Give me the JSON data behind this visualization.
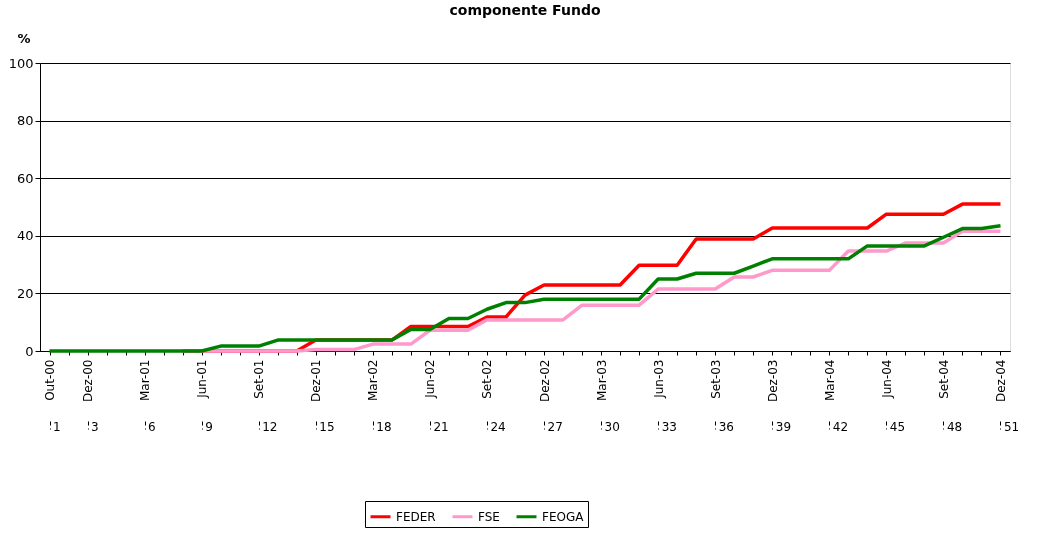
{
  "chart_data": {
    "type": "line",
    "title": "componente Fundo",
    "ylabel": "%",
    "categories": [
      "Out-00",
      null,
      "Dez-00",
      null,
      null,
      "Mar-01",
      null,
      null,
      "Jun-01",
      null,
      null,
      "Set-01",
      null,
      null,
      "Dez-01",
      null,
      null,
      "Mar-02",
      null,
      null,
      "Jun-02",
      null,
      null,
      "Set-02",
      null,
      null,
      "Dez-02",
      null,
      null,
      "Mar-03",
      null,
      null,
      "Jun-03",
      null,
      null,
      "Set-03",
      null,
      null,
      "Dez-03",
      null,
      null,
      "Mar-04",
      null,
      null,
      "Jun-04",
      null,
      null,
      "Set-04",
      null,
      null,
      "Dez-04"
    ],
    "series": [
      {
        "name": "FEDER",
        "color": "#ff0000",
        "values": [
          null,
          null,
          null,
          null,
          null,
          null,
          null,
          0,
          0,
          0,
          0,
          0,
          0,
          0,
          3.8,
          3.8,
          3.8,
          3.8,
          3.8,
          8.5,
          8.5,
          8.5,
          8.5,
          11.8,
          11.8,
          19.4,
          22.9,
          22.9,
          22.9,
          22.9,
          22.9,
          29.8,
          29.8,
          29.8,
          38.9,
          38.9,
          38.9,
          38.9,
          42.7,
          42.7,
          42.7,
          42.7,
          42.7,
          42.7,
          47.5,
          47.5,
          47.5,
          47.5,
          51,
          51,
          51
        ]
      },
      {
        "name": "FSE",
        "color": "#ff99cc",
        "values": [
          null,
          null,
          null,
          null,
          null,
          null,
          null,
          0,
          0,
          0,
          0,
          0,
          0,
          0,
          0.5,
          0.5,
          0.5,
          2.4,
          2.4,
          2.4,
          7.2,
          7.2,
          7.2,
          10.8,
          10.8,
          10.8,
          10.8,
          10.8,
          15.9,
          15.9,
          15.9,
          15.9,
          21.5,
          21.5,
          21.5,
          21.5,
          25.7,
          25.7,
          28,
          28,
          28,
          28,
          34.7,
          34.7,
          34.7,
          37.5,
          37.5,
          37.5,
          41.6,
          41.6,
          41.6
        ]
      },
      {
        "name": "FEOGA",
        "color": "#008000",
        "values": [
          0,
          0,
          0,
          0,
          0,
          0,
          0,
          0,
          0,
          1.7,
          1.7,
          1.7,
          3.8,
          3.8,
          3.8,
          3.8,
          3.8,
          3.8,
          3.8,
          7.5,
          7.5,
          11.3,
          11.3,
          14.5,
          16.8,
          16.8,
          18,
          18,
          18,
          18,
          18,
          18,
          25,
          25,
          27,
          27,
          27,
          29.5,
          32,
          32,
          32,
          32,
          32,
          36.5,
          36.5,
          36.5,
          36.5,
          39.5,
          42.5,
          42.5,
          43.5
        ]
      }
    ],
    "ylim": [
      0,
      100
    ],
    "yticks": [
      0,
      20,
      40,
      60,
      80,
      100
    ],
    "grid": "y",
    "legend": "bottom",
    "marker": "none",
    "line_style": "solid",
    "x2lim": [
      1,
      51
    ],
    "x2ticks": [
      1,
      3,
      6,
      9,
      12,
      15,
      18,
      21,
      24,
      27,
      30,
      33,
      36,
      39,
      42,
      45,
      48,
      51
    ]
  }
}
